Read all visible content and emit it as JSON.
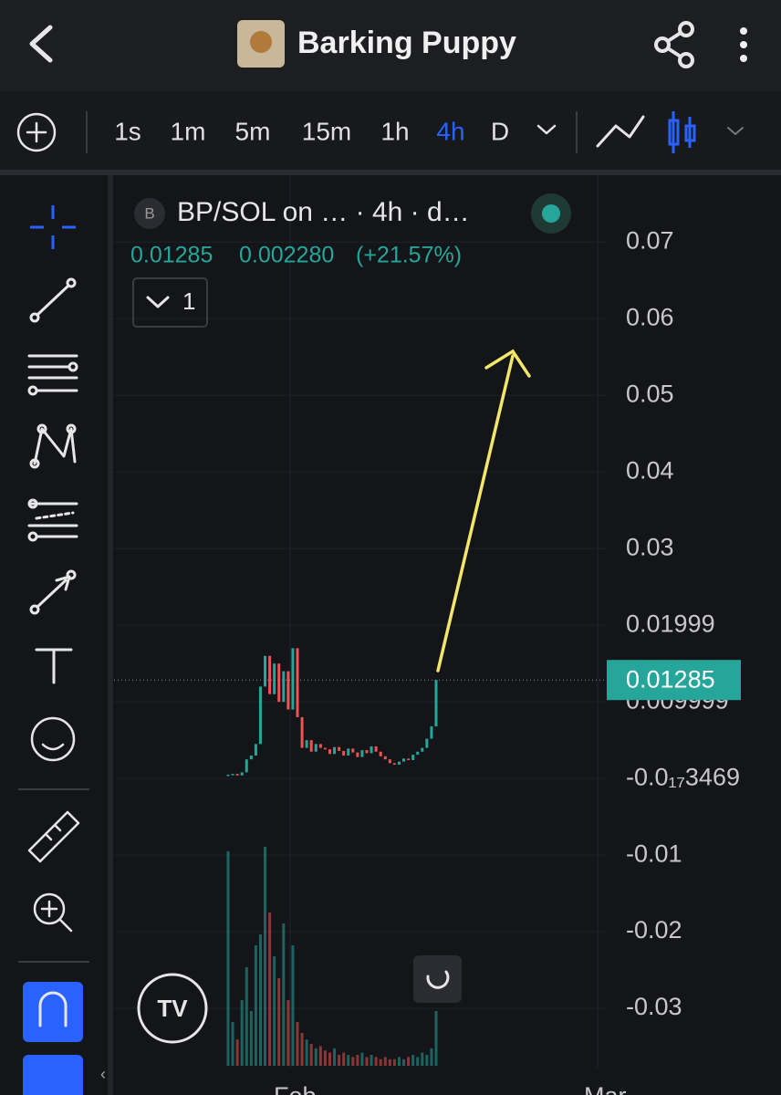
{
  "header": {
    "title": "Barking Puppy"
  },
  "toolbar": {
    "timeframes": [
      "1s",
      "1m",
      "5m",
      "15m",
      "1h",
      "4h",
      "D"
    ],
    "active_index": 5
  },
  "legend": {
    "badge": "B",
    "label": "BP/SOL on … · 4h · d…",
    "change": "0.002280",
    "change_pct": "(+21.57%)",
    "collapse": "1"
  },
  "chart_data": {
    "type": "candlestick",
    "closes": [
      0.0005,
      0.0006,
      0.0004,
      0.0008,
      0.0025,
      0.003,
      0.0045,
      0.012,
      0.016,
      0.011,
      0.015,
      0.01,
      0.014,
      0.009,
      0.017,
      0.008,
      0.004,
      0.005,
      0.0035,
      0.0045,
      0.004,
      0.0038,
      0.0032,
      0.0041,
      0.0036,
      0.003,
      0.0039,
      0.0034,
      0.0028,
      0.0037,
      0.0033,
      0.0042,
      0.0035,
      0.0029,
      0.0025,
      0.002,
      0.0018,
      0.0022,
      0.0026,
      0.0024,
      0.0031,
      0.0035,
      0.004,
      0.0052,
      0.0068,
      0.01285
    ],
    "volumes": [
      98,
      20,
      12,
      30,
      45,
      25,
      55,
      60,
      100,
      70,
      50,
      40,
      65,
      30,
      55,
      20,
      15,
      12,
      10,
      8,
      9,
      7,
      6,
      8,
      5,
      6,
      5,
      4,
      5,
      6,
      4,
      5,
      4,
      3,
      4,
      3,
      3,
      4,
      3,
      4,
      5,
      4,
      6,
      5,
      8,
      25
    ],
    "up_color": "#26a69a",
    "down_color": "#ef5350",
    "ylim": [
      -0.0413,
      0.0792
    ],
    "yticks": [
      0.07,
      0.06,
      0.05,
      0.04,
      0.03,
      {
        "value": 0.02,
        "label": "0.01999"
      },
      {
        "value": 0.01,
        "label": "0.009999"
      },
      {
        "value": -3.469e-18,
        "label": "-0.0₁₇3469"
      },
      -0.01,
      -0.02,
      -0.03
    ],
    "last_price": 0.01285,
    "x_labels": [
      "Feb",
      "Mar"
    ]
  }
}
